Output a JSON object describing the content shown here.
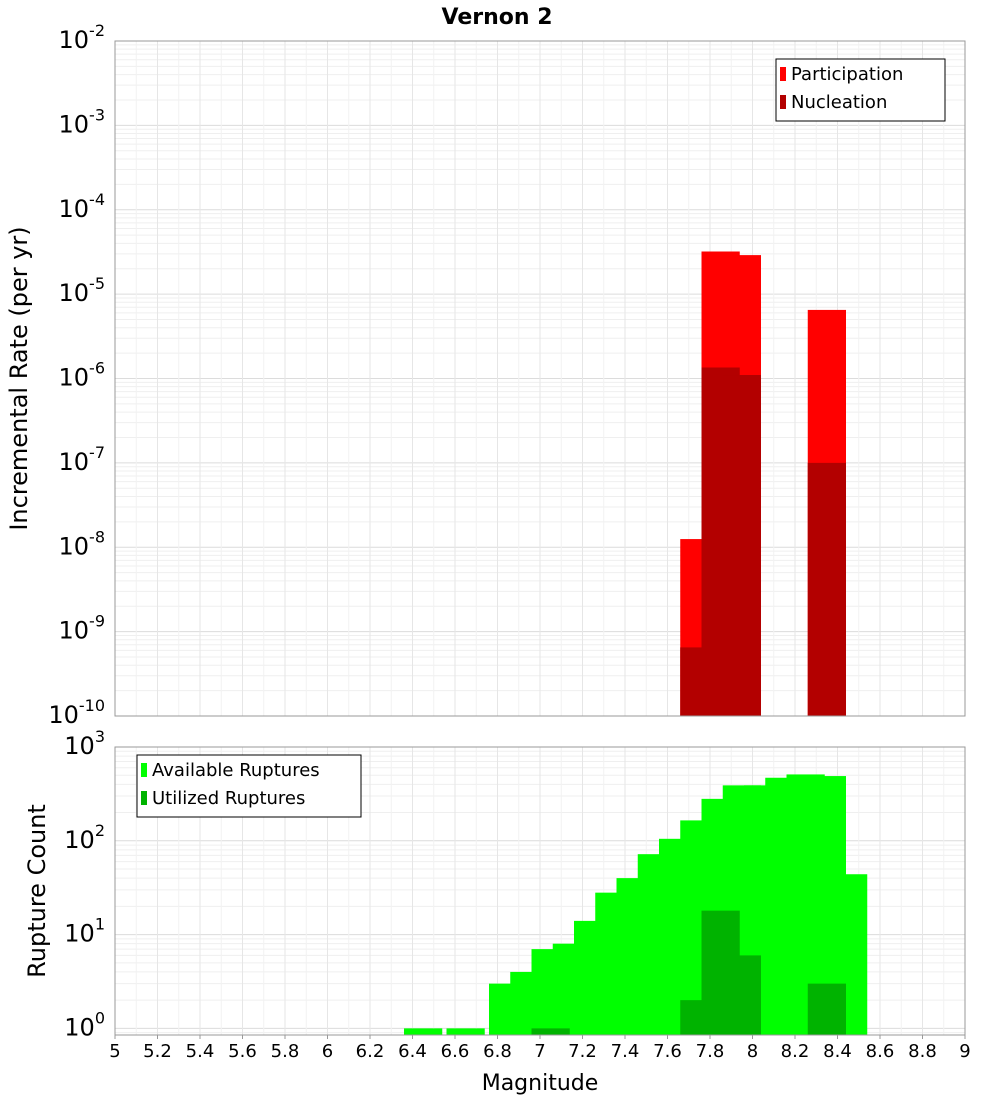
{
  "title": "Vernon 2",
  "chart_data": [
    {
      "type": "bar",
      "panel": "top",
      "ylabel": "Incremental Rate (per yr)",
      "yscale": "log",
      "ylim": [
        1e-10,
        0.01
      ],
      "y_ticks": [
        {
          "base": "10",
          "exp": "-10"
        },
        {
          "base": "10",
          "exp": "-9"
        },
        {
          "base": "10",
          "exp": "-8"
        },
        {
          "base": "10",
          "exp": "-7"
        },
        {
          "base": "10",
          "exp": "-6"
        },
        {
          "base": "10",
          "exp": "-5"
        },
        {
          "base": "10",
          "exp": "-4"
        },
        {
          "base": "10",
          "exp": "-3"
        },
        {
          "base": "10",
          "exp": "-2"
        }
      ],
      "xlim": [
        5,
        9
      ],
      "grid": true,
      "legend_position": "top-right",
      "series": [
        {
          "name": "Participation",
          "color": "#ff0000",
          "points": [
            [
              7.75,
              1.25e-08
            ],
            [
              7.85,
              3.2e-05
            ],
            [
              7.95,
              2.9e-05
            ],
            [
              8.35,
              6.5e-06
            ]
          ]
        },
        {
          "name": "Nucleation",
          "color": "#b30000",
          "points": [
            [
              7.75,
              6.5e-10
            ],
            [
              7.85,
              1.35e-06
            ],
            [
              7.95,
              1.1e-06
            ],
            [
              8.35,
              1e-07
            ]
          ]
        }
      ]
    },
    {
      "type": "bar",
      "panel": "bottom",
      "xlabel": "Magnitude",
      "ylabel": "Rupture Count",
      "yscale": "log",
      "ylim": [
        0.85,
        1000
      ],
      "y_ticks": [
        {
          "base": "10",
          "exp": "0"
        },
        {
          "base": "10",
          "exp": "1"
        },
        {
          "base": "10",
          "exp": "2"
        },
        {
          "base": "10",
          "exp": "3"
        }
      ],
      "xlim": [
        5,
        9
      ],
      "x_ticks": [
        "5",
        "5.2",
        "5.4",
        "5.6",
        "5.8",
        "6",
        "6.2",
        "6.4",
        "6.6",
        "6.8",
        "7",
        "7.2",
        "7.4",
        "7.6",
        "7.8",
        "8",
        "8.2",
        "8.4",
        "8.6",
        "8.8",
        "9"
      ],
      "grid": true,
      "legend_position": "top-left",
      "series": [
        {
          "name": "Available Ruptures",
          "color": "#00ff00",
          "points": [
            [
              6.45,
              1
            ],
            [
              6.65,
              1
            ],
            [
              6.85,
              3
            ],
            [
              6.95,
              4
            ],
            [
              7.05,
              7
            ],
            [
              7.15,
              8
            ],
            [
              7.25,
              14
            ],
            [
              7.35,
              28
            ],
            [
              7.45,
              40
            ],
            [
              7.55,
              72
            ],
            [
              7.65,
              105
            ],
            [
              7.75,
              165
            ],
            [
              7.85,
              280
            ],
            [
              7.95,
              390
            ],
            [
              8.05,
              390
            ],
            [
              8.15,
              470
            ],
            [
              8.25,
              510
            ],
            [
              8.35,
              490
            ],
            [
              8.45,
              44
            ]
          ]
        },
        {
          "name": "Utilized Ruptures",
          "color": "#00b300",
          "points": [
            [
              7.05,
              1
            ],
            [
              7.75,
              2
            ],
            [
              7.85,
              18
            ],
            [
              7.95,
              6
            ],
            [
              8.35,
              3
            ]
          ]
        }
      ]
    }
  ]
}
